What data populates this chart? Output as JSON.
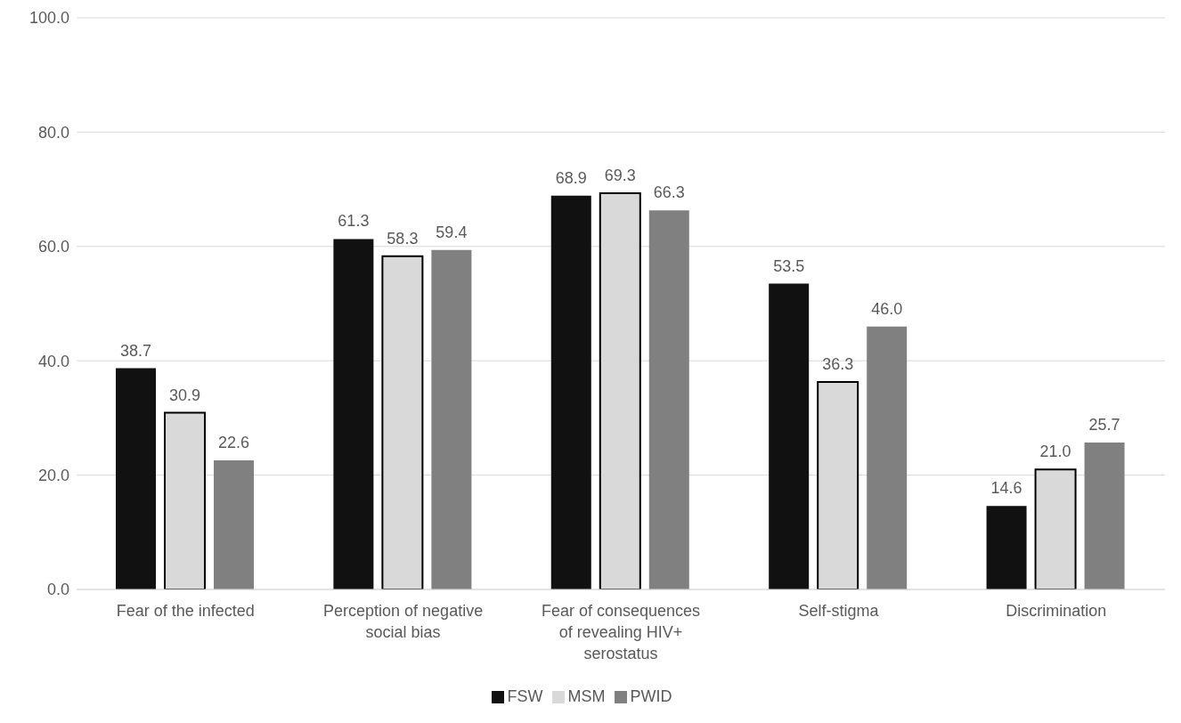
{
  "chart_data": {
    "type": "bar",
    "categories": [
      "Fear of the infected",
      "Perception of negative social bias",
      "Fear of consequences of revealing HIV+ serostatus",
      "Self-stigma",
      "Discrimination"
    ],
    "series": [
      {
        "name": "FSW",
        "color": "#111111",
        "values": [
          38.7,
          61.3,
          68.9,
          53.5,
          14.6
        ],
        "value_labels": [
          "38.7",
          "61.3",
          "68.9",
          "53.5",
          "14.6"
        ]
      },
      {
        "name": "MSM",
        "color": "#d9d9d9",
        "values": [
          30.9,
          58.3,
          69.3,
          36.3,
          21.0
        ],
        "value_labels": [
          "30.9",
          "58.3",
          "69.3",
          "36.3",
          "21.0"
        ]
      },
      {
        "name": "PWID",
        "color": "#808080",
        "values": [
          22.6,
          59.4,
          66.3,
          46.0,
          25.7
        ],
        "value_labels": [
          "22.6",
          "59.4",
          "66.3",
          "46.0",
          "25.7"
        ]
      }
    ],
    "ylim": [
      0,
      100
    ],
    "yticks": [
      {
        "value": 0,
        "label": "0.0"
      },
      {
        "value": 20,
        "label": "20.0"
      },
      {
        "value": 40,
        "label": "40.0"
      },
      {
        "value": 60,
        "label": "60.0"
      },
      {
        "value": 80,
        "label": "80.0"
      },
      {
        "value": 100,
        "label": "100.0"
      }
    ],
    "grid": "y",
    "legend": "bottom"
  }
}
